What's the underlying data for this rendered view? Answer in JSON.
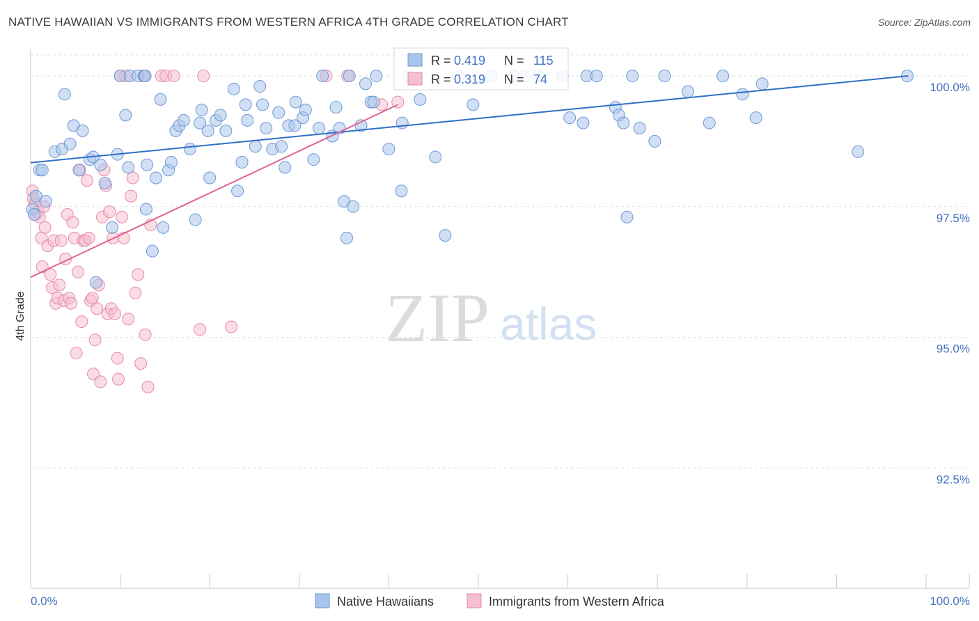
{
  "header": {
    "title": "NATIVE HAWAIIAN VS IMMIGRANTS FROM WESTERN AFRICA 4TH GRADE CORRELATION CHART",
    "source": "Source: ZipAtlas.com"
  },
  "watermark": {
    "zip": "ZIP",
    "atlas": "atlas"
  },
  "colors": {
    "blue_fill": "#a9c4ea",
    "blue_stroke": "#6d98d6",
    "blue_line": "#2f6fc8",
    "pink_fill": "#f6bfd0",
    "pink_stroke": "#e68aa8",
    "pink_line": "#e06394",
    "grid": "#e3e3e3",
    "tick_text": "#4472c4"
  },
  "stats_legend": [
    {
      "r_label": "R =",
      "r_value": "0.419",
      "n_label": "N =",
      "n_value": "115"
    },
    {
      "r_label": "R =",
      "r_value": "0.319",
      "n_label": "N =",
      "n_value": "74"
    }
  ],
  "chart_data": {
    "type": "scatter",
    "title": "NATIVE HAWAIIAN VS IMMIGRANTS FROM WESTERN AFRICA 4TH GRADE CORRELATION CHART",
    "xlabel": "",
    "ylabel": "4th Grade",
    "xlim": [
      0,
      100
    ],
    "ylim": [
      90.2,
      100.4
    ],
    "x_tick_labels": [
      "0.0%",
      "100.0%"
    ],
    "y_ticks": [
      100.0,
      97.5,
      95.0,
      92.5
    ],
    "y_tick_labels": [
      "100.0%",
      "97.5%",
      "95.0%",
      "92.5%"
    ],
    "grid": true,
    "legend_position": "bottom-center",
    "series": [
      {
        "name": "Native Hawaiians",
        "color": "#a9c4ea",
        "trend": {
          "x": [
            0,
            98
          ],
          "y": [
            98.34,
            100.0
          ]
        },
        "points": [
          [
            0.2,
            97.45
          ],
          [
            0.4,
            97.35
          ],
          [
            0.6,
            97.7
          ],
          [
            1.0,
            98.2
          ],
          [
            1.3,
            98.2
          ],
          [
            1.7,
            97.6
          ],
          [
            2.7,
            98.55
          ],
          [
            3.5,
            98.6
          ],
          [
            3.8,
            99.65
          ],
          [
            4.4,
            98.7
          ],
          [
            4.8,
            99.05
          ],
          [
            5.4,
            98.2
          ],
          [
            5.8,
            98.95
          ],
          [
            6.6,
            98.4
          ],
          [
            7.0,
            98.45
          ],
          [
            7.3,
            96.05
          ],
          [
            7.8,
            98.3
          ],
          [
            8.3,
            97.95
          ],
          [
            9.1,
            97.1
          ],
          [
            9.7,
            98.5
          ],
          [
            10.0,
            100.0
          ],
          [
            10.6,
            99.25
          ],
          [
            10.9,
            98.25
          ],
          [
            11.1,
            100.0
          ],
          [
            12.0,
            100.0
          ],
          [
            12.7,
            100.0
          ],
          [
            12.8,
            100.0
          ],
          [
            12.9,
            97.45
          ],
          [
            13.0,
            98.3
          ],
          [
            13.6,
            96.65
          ],
          [
            14.0,
            98.05
          ],
          [
            14.5,
            99.55
          ],
          [
            14.8,
            97.1
          ],
          [
            15.4,
            98.2
          ],
          [
            15.7,
            98.35
          ],
          [
            16.2,
            98.95
          ],
          [
            16.6,
            99.05
          ],
          [
            17.1,
            99.15
          ],
          [
            17.8,
            98.6
          ],
          [
            18.4,
            97.25
          ],
          [
            18.9,
            99.1
          ],
          [
            19.1,
            99.35
          ],
          [
            19.8,
            98.95
          ],
          [
            20.0,
            98.05
          ],
          [
            20.7,
            99.15
          ],
          [
            21.2,
            99.25
          ],
          [
            21.8,
            98.95
          ],
          [
            22.7,
            99.75
          ],
          [
            23.1,
            97.8
          ],
          [
            23.6,
            98.35
          ],
          [
            24.0,
            99.45
          ],
          [
            24.2,
            99.15
          ],
          [
            25.1,
            98.65
          ],
          [
            25.6,
            99.8
          ],
          [
            25.9,
            99.45
          ],
          [
            26.3,
            99.0
          ],
          [
            27.0,
            98.6
          ],
          [
            27.7,
            99.3
          ],
          [
            28.0,
            98.65
          ],
          [
            28.4,
            98.25
          ],
          [
            28.8,
            99.05
          ],
          [
            29.5,
            99.05
          ],
          [
            29.6,
            99.5
          ],
          [
            30.4,
            99.2
          ],
          [
            30.7,
            99.35
          ],
          [
            31.6,
            98.4
          ],
          [
            32.2,
            99.0
          ],
          [
            32.6,
            100.0
          ],
          [
            33.7,
            98.85
          ],
          [
            34.1,
            99.4
          ],
          [
            34.5,
            99.0
          ],
          [
            35.0,
            97.6
          ],
          [
            35.3,
            96.9
          ],
          [
            35.6,
            100.0
          ],
          [
            36.0,
            97.5
          ],
          [
            36.9,
            99.05
          ],
          [
            37.4,
            99.85
          ],
          [
            38.0,
            99.5
          ],
          [
            38.3,
            99.5
          ],
          [
            38.6,
            100.0
          ],
          [
            40.0,
            98.6
          ],
          [
            41.5,
            99.1
          ],
          [
            41.4,
            97.8
          ],
          [
            42.2,
            100.0
          ],
          [
            43.5,
            99.55
          ],
          [
            45.2,
            98.45
          ],
          [
            46.3,
            96.95
          ],
          [
            47.8,
            100.0
          ],
          [
            49.4,
            99.45
          ],
          [
            51.4,
            100.0
          ],
          [
            54.0,
            100.0
          ],
          [
            55.2,
            100.0
          ],
          [
            56.7,
            100.0
          ],
          [
            59.4,
            100.0
          ],
          [
            60.2,
            99.2
          ],
          [
            61.7,
            99.1
          ],
          [
            62.1,
            100.0
          ],
          [
            63.2,
            100.0
          ],
          [
            65.3,
            99.4
          ],
          [
            65.7,
            99.25
          ],
          [
            66.2,
            99.1
          ],
          [
            66.6,
            97.3
          ],
          [
            67.2,
            100.0
          ],
          [
            68.0,
            99.0
          ],
          [
            69.7,
            98.75
          ],
          [
            70.8,
            100.0
          ],
          [
            73.4,
            99.7
          ],
          [
            75.8,
            99.1
          ],
          [
            77.3,
            100.0
          ],
          [
            79.5,
            99.65
          ],
          [
            81.0,
            99.2
          ],
          [
            81.7,
            99.85
          ],
          [
            92.4,
            98.55
          ],
          [
            97.9,
            100.0
          ]
        ]
      },
      {
        "name": "Immigrants from Western Africa",
        "color": "#f6bfd0",
        "trend": {
          "x": [
            0,
            41
          ],
          "y": [
            96.15,
            99.45
          ]
        },
        "points": [
          [
            0.2,
            97.8
          ],
          [
            0.3,
            97.65
          ],
          [
            0.5,
            97.55
          ],
          [
            0.6,
            97.35
          ],
          [
            0.8,
            97.4
          ],
          [
            1.0,
            97.3
          ],
          [
            1.2,
            96.9
          ],
          [
            1.3,
            96.35
          ],
          [
            1.5,
            97.5
          ],
          [
            1.6,
            97.1
          ],
          [
            1.9,
            96.75
          ],
          [
            2.2,
            96.2
          ],
          [
            2.4,
            95.95
          ],
          [
            2.6,
            96.85
          ],
          [
            2.8,
            95.65
          ],
          [
            3.0,
            95.75
          ],
          [
            3.2,
            96.0
          ],
          [
            3.4,
            96.85
          ],
          [
            3.7,
            95.7
          ],
          [
            3.9,
            96.5
          ],
          [
            4.1,
            97.35
          ],
          [
            4.3,
            95.75
          ],
          [
            4.5,
            95.65
          ],
          [
            4.7,
            97.2
          ],
          [
            4.9,
            96.9
          ],
          [
            5.1,
            94.7
          ],
          [
            5.3,
            96.25
          ],
          [
            5.5,
            98.2
          ],
          [
            5.7,
            95.3
          ],
          [
            5.9,
            96.85
          ],
          [
            6.1,
            96.85
          ],
          [
            6.3,
            98.0
          ],
          [
            6.5,
            96.9
          ],
          [
            6.7,
            95.7
          ],
          [
            6.9,
            95.75
          ],
          [
            7.0,
            94.3
          ],
          [
            7.2,
            94.95
          ],
          [
            7.4,
            95.55
          ],
          [
            7.6,
            96.0
          ],
          [
            7.8,
            94.15
          ],
          [
            8.0,
            97.3
          ],
          [
            8.2,
            98.2
          ],
          [
            8.4,
            97.9
          ],
          [
            8.6,
            95.45
          ],
          [
            8.8,
            97.4
          ],
          [
            9.0,
            95.55
          ],
          [
            9.2,
            96.9
          ],
          [
            9.4,
            95.45
          ],
          [
            9.7,
            94.6
          ],
          [
            9.8,
            94.2
          ],
          [
            10.0,
            100.0
          ],
          [
            10.2,
            97.3
          ],
          [
            10.4,
            96.9
          ],
          [
            10.6,
            100.0
          ],
          [
            10.9,
            95.35
          ],
          [
            11.2,
            97.7
          ],
          [
            11.4,
            98.05
          ],
          [
            11.7,
            95.85
          ],
          [
            12.0,
            96.2
          ],
          [
            12.3,
            94.5
          ],
          [
            12.6,
            100.0
          ],
          [
            12.8,
            95.05
          ],
          [
            13.1,
            94.05
          ],
          [
            13.4,
            97.15
          ],
          [
            14.6,
            100.0
          ],
          [
            15.1,
            100.0
          ],
          [
            16.0,
            100.0
          ],
          [
            18.9,
            95.15
          ],
          [
            19.3,
            100.0
          ],
          [
            22.4,
            95.2
          ],
          [
            33.0,
            100.0
          ],
          [
            35.4,
            100.0
          ],
          [
            39.2,
            99.45
          ],
          [
            41.0,
            99.5
          ]
        ]
      }
    ]
  }
}
